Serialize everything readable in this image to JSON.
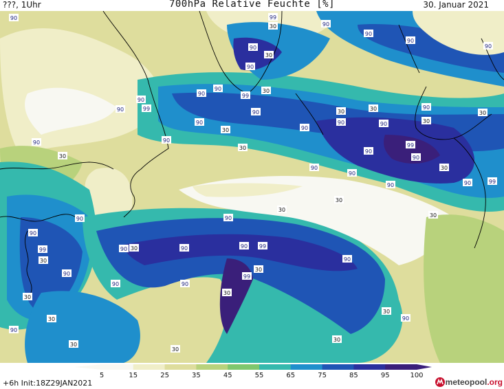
{
  "header": {
    "left": "???, 1Uhr",
    "title": "700hPa Relative Feuchte [%]",
    "date": "30. Januar 2021"
  },
  "colors": {
    "rh_5_15": "#f8f8f2",
    "rh_15_25": "#f0eec8",
    "rh_25_35": "#dedd9d",
    "rh_35_45": "#b8d27c",
    "rh_45_55": "#7fc76e",
    "rh_55_65": "#35b9ad",
    "rh_65_75": "#1f8fcc",
    "rh_75_85": "#1f55b5",
    "rh_85_95": "#2a2f9e",
    "rh_95_100": "#3a1f7a",
    "coastline": "#000000",
    "brand_accent": "#c8102e"
  },
  "contour_labels": [
    "90",
    "99",
    "30",
    "90",
    "90",
    "90",
    "90",
    "90",
    "90",
    "30",
    "90",
    "90",
    "99",
    "90",
    "99",
    "30",
    "90",
    "90",
    "90",
    "30",
    "90",
    "30",
    "90",
    "30",
    "90",
    "90",
    "30",
    "30",
    "90",
    "30",
    "90",
    "30",
    "90",
    "90",
    "90",
    "99",
    "90",
    "30",
    "90",
    "90",
    "99",
    "90",
    "90",
    "30",
    "30",
    "30",
    "30",
    "90",
    "90",
    "30",
    "90",
    "99",
    "90",
    "90",
    "99",
    "90",
    "90",
    "30",
    "90",
    "30",
    "30",
    "99",
    "30",
    "90",
    "30",
    "30",
    "30",
    "90",
    "30"
  ],
  "legend": {
    "ticks": [
      "5",
      "15",
      "25",
      "35",
      "45",
      "55",
      "65",
      "75",
      "85",
      "95",
      "100"
    ],
    "color_keys": [
      "rh_5_15",
      "rh_15_25",
      "rh_25_35",
      "rh_35_45",
      "rh_45_55",
      "rh_55_65",
      "rh_65_75",
      "rh_75_85",
      "rh_85_95",
      "rh_95_100"
    ]
  },
  "footer": {
    "init": "+6h  Init:18Z29JAN2021",
    "brand_main": "meteopool",
    "brand_suffix": ".org",
    "brand_icon": "meteopool-logo-icon"
  }
}
